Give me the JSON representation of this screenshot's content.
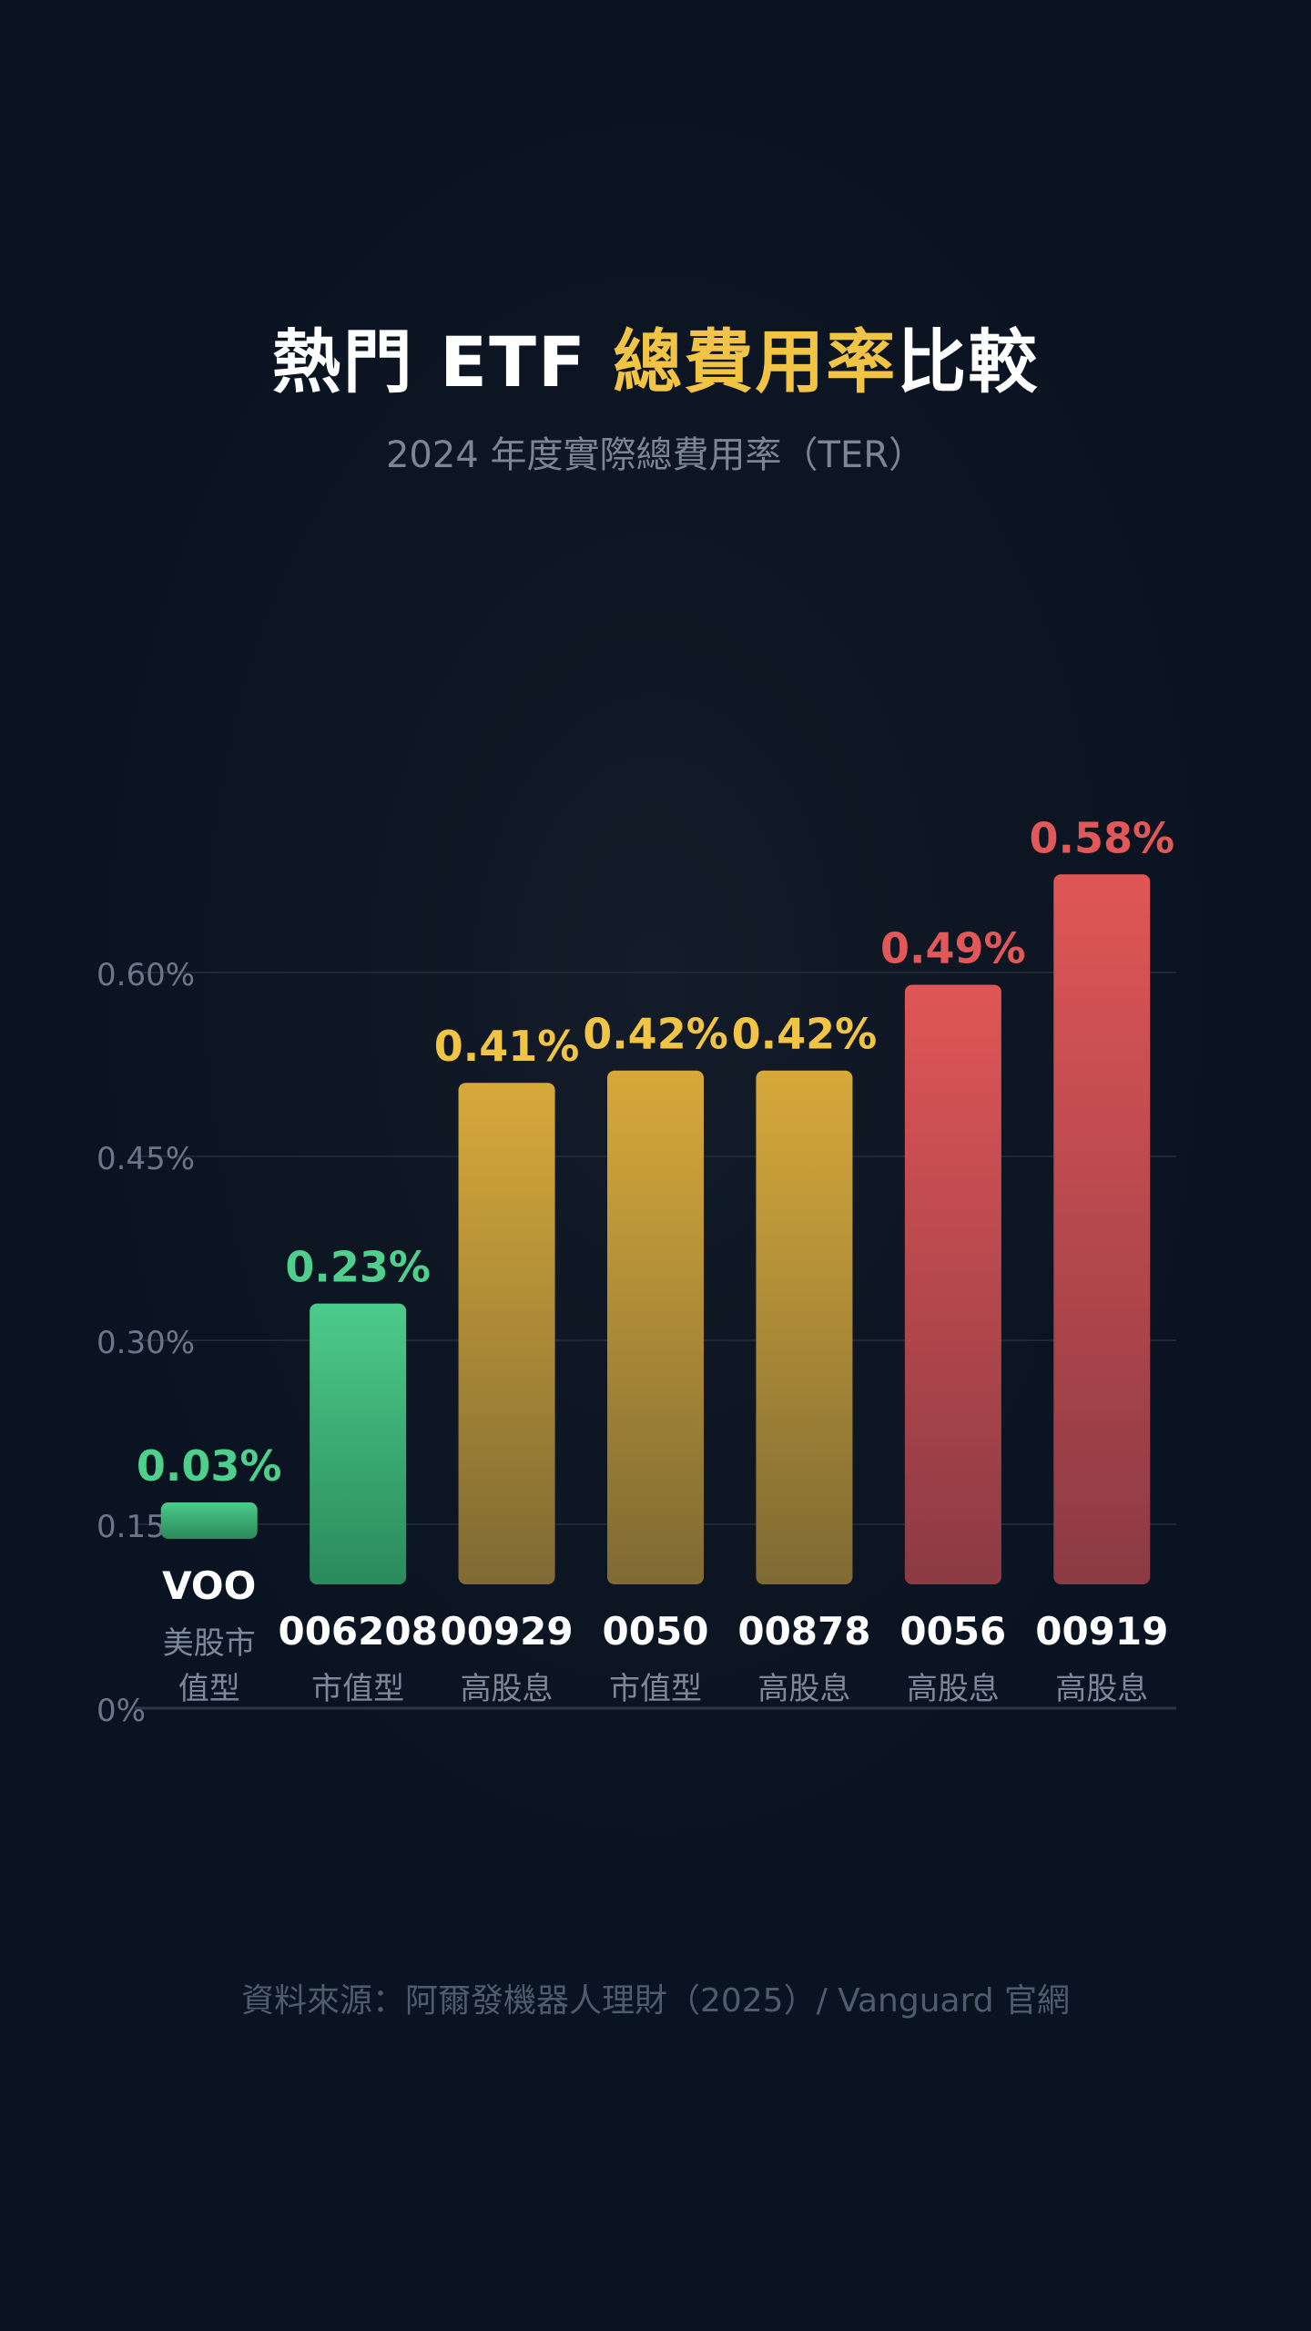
{
  "header": {
    "title_prefix": "熱門 ETF ",
    "title_highlight": "總費用率",
    "title_suffix": "比較",
    "subtitle": "2024 年度實際總費用率（TER）"
  },
  "chart_data": {
    "type": "bar",
    "title": "熱門 ETF 總費用率比較",
    "subtitle": "2024 年度實際總費用率（TER）",
    "categories": [
      "VOO",
      "006208",
      "00929",
      "0050",
      "00878",
      "0056",
      "00919"
    ],
    "category_sublabels": [
      [
        "美股市",
        "值型"
      ],
      [
        "市值型"
      ],
      [
        "高股息"
      ],
      [
        "市值型"
      ],
      [
        "高股息"
      ],
      [
        "高股息"
      ],
      [
        "高股息"
      ]
    ],
    "values": [
      0.03,
      0.23,
      0.41,
      0.42,
      0.42,
      0.49,
      0.58
    ],
    "value_labels": [
      "0.03%",
      "0.23%",
      "0.41%",
      "0.42%",
      "0.42%",
      "0.49%",
      "0.58%"
    ],
    "groups": [
      "green",
      "green",
      "gold",
      "gold",
      "gold",
      "red",
      "red"
    ],
    "y_ticks": [
      0,
      0.15,
      0.3,
      0.45,
      0.6
    ],
    "y_tick_labels": [
      "0%",
      "0.15%",
      "0.30%",
      "0.45%",
      "0.60%"
    ],
    "ylim": [
      0,
      0.6
    ],
    "xlabel": "",
    "ylabel": "",
    "grid": true,
    "legend": "none"
  },
  "colors": {
    "green": [
      "#4dcb8a",
      "#2a8a5c"
    ],
    "gold": [
      "#d7a93a",
      "#7f6a33"
    ],
    "red": [
      "#e05656",
      "#8c3a44"
    ],
    "green_label": "#4ecf8c",
    "gold_label": "#f2c445",
    "red_label": "#e25757",
    "axis_text": "#6b7686",
    "grid": "#1e2836",
    "category_text": "#ffffff",
    "sublabel_text": "#7d8898"
  },
  "footer": {
    "source": "資料來源：阿爾發機器人理財（2025）/ Vanguard 官網"
  }
}
